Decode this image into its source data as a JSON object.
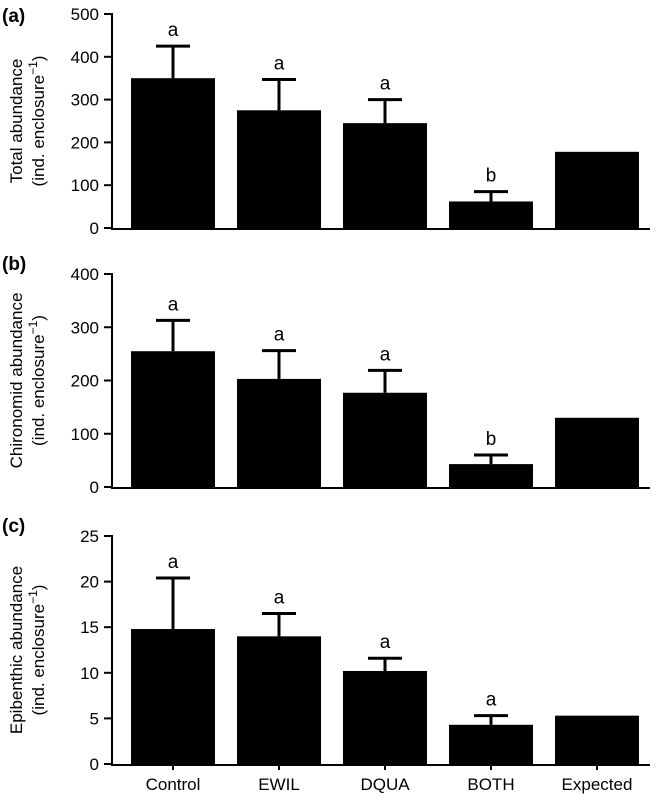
{
  "chart_data": [
    {
      "type": "bar",
      "panel_label": "(a)",
      "ylabel_line1": "Total abundance",
      "ylabel_line2": "(ind. enclosure",
      "ylabel_sup": "−1",
      "ylabel_close": ")",
      "categories": [
        "Control",
        "EWIL",
        "DQUA",
        "BOTH",
        "Expected"
      ],
      "values": [
        350,
        275,
        245,
        62,
        178
      ],
      "errors": [
        75,
        72,
        55,
        23,
        null
      ],
      "significance": [
        "a",
        "a",
        "a",
        "b",
        ""
      ],
      "ylim": [
        0,
        500
      ],
      "yticks": [
        "0",
        "100",
        "200",
        "300",
        "400",
        "500"
      ],
      "show_xticklabels": false
    },
    {
      "type": "bar",
      "panel_label": "(b)",
      "ylabel_line1": "Chironomid abundance",
      "ylabel_line2": "(ind. enclosure",
      "ylabel_sup": "−1",
      "ylabel_close": ")",
      "categories": [
        "Control",
        "EWIL",
        "DQUA",
        "BOTH",
        "Expected"
      ],
      "values": [
        255,
        203,
        177,
        43,
        130
      ],
      "errors": [
        58,
        53,
        42,
        17,
        null
      ],
      "significance": [
        "a",
        "a",
        "a",
        "b",
        ""
      ],
      "ylim": [
        0,
        400
      ],
      "yticks": [
        "0",
        "100",
        "200",
        "300",
        "400"
      ],
      "show_xticklabels": false
    },
    {
      "type": "bar",
      "panel_label": "(c)",
      "ylabel_line1": "Epibenthic abundance",
      "ylabel_line2": "(ind. enclosure",
      "ylabel_sup": "−1",
      "ylabel_close": ")",
      "categories": [
        "Control",
        "EWIL",
        "DQUA",
        "BOTH",
        "Expected"
      ],
      "values": [
        14.8,
        14.0,
        10.2,
        4.3,
        5.3
      ],
      "errors": [
        5.6,
        2.5,
        1.4,
        1.0,
        null
      ],
      "significance": [
        "a",
        "a",
        "a",
        "a",
        ""
      ],
      "ylim": [
        0,
        25
      ],
      "yticks": [
        "0",
        "5",
        "10",
        "15",
        "20",
        "25"
      ],
      "show_xticklabels": true
    }
  ]
}
